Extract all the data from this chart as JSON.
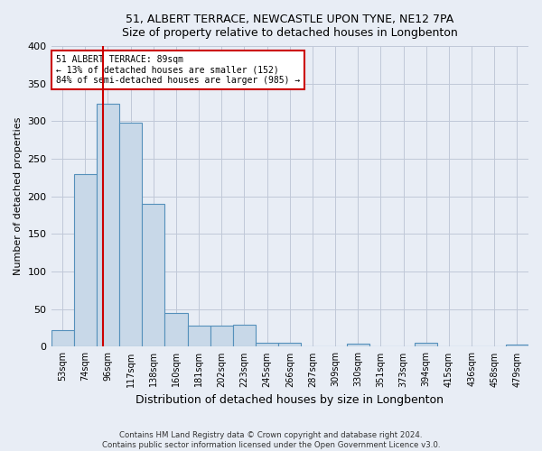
{
  "title_line1": "51, ALBERT TERRACE, NEWCASTLE UPON TYNE, NE12 7PA",
  "title_line2": "Size of property relative to detached houses in Longbenton",
  "xlabel": "Distribution of detached houses by size in Longbenton",
  "ylabel": "Number of detached properties",
  "bin_labels": [
    "53sqm",
    "74sqm",
    "96sqm",
    "117sqm",
    "138sqm",
    "160sqm",
    "181sqm",
    "202sqm",
    "223sqm",
    "245sqm",
    "266sqm",
    "287sqm",
    "309sqm",
    "330sqm",
    "351sqm",
    "373sqm",
    "394sqm",
    "415sqm",
    "436sqm",
    "458sqm",
    "479sqm"
  ],
  "bar_values": [
    22,
    230,
    323,
    298,
    190,
    45,
    28,
    28,
    29,
    5,
    5,
    0,
    0,
    4,
    0,
    0,
    5,
    0,
    0,
    0,
    3
  ],
  "bar_color": "#c8d8e8",
  "bar_edge_color": "#5590bb",
  "grid_color": "#c0c8d8",
  "background_color": "#e8edf5",
  "property_label": "51 ALBERT TERRACE: 89sqm",
  "annotation_line1": "← 13% of detached houses are smaller (152)",
  "annotation_line2": "84% of semi-detached houses are larger (985) →",
  "vline_color": "#cc0000",
  "annotation_box_color": "#ffffff",
  "annotation_box_edge": "#cc0000",
  "vline_x_index": 1.78,
  "ylim": [
    0,
    400
  ],
  "yticks": [
    0,
    50,
    100,
    150,
    200,
    250,
    300,
    350,
    400
  ],
  "footer_line1": "Contains HM Land Registry data © Crown copyright and database right 2024.",
  "footer_line2": "Contains public sector information licensed under the Open Government Licence v3.0."
}
